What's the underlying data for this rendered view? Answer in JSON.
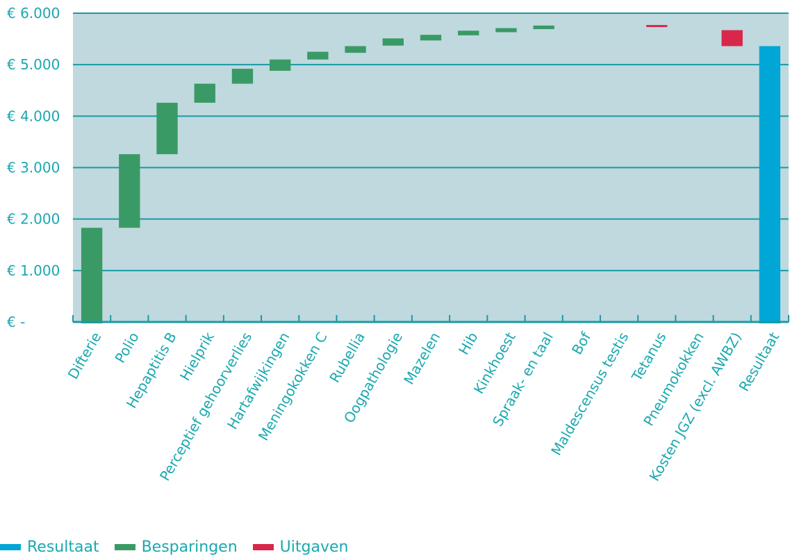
{
  "chart_data": {
    "type": "waterfall",
    "title": "",
    "xlabel": "",
    "ylabel": "",
    "ylim": [
      0,
      6000
    ],
    "y_ticks": [
      0,
      1000,
      2000,
      3000,
      4000,
      5000,
      6000
    ],
    "y_tick_labels": [
      "€ -",
      "€ 1.000",
      "€ 2.000",
      "€ 3.000",
      "€ 4.000",
      "€ 5.000",
      "€ 6.000"
    ],
    "grid": true,
    "legend_position": "bottom-left",
    "colors": {
      "Resultaat": "#00a6d6",
      "Besparingen": "#3a9a66",
      "Uitgaven": "#d9264a",
      "plot_background": "#bfd9de",
      "gridline": "#1a9aa6"
    },
    "legend": [
      {
        "name": "Resultaat",
        "color": "#00a6d6"
      },
      {
        "name": "Besparingen",
        "color": "#3a9a66"
      },
      {
        "name": "Uitgaven",
        "color": "#d9264a"
      }
    ],
    "categories": [
      "Difterie",
      "Polio",
      "Hepaptitis B",
      "Hielprik",
      "Perceptief gehoorverlies",
      "Hartafwijkingen",
      "Meningokokken C",
      "Rubellia",
      "Oogpathologie",
      "Mazelen",
      "Hib",
      "Kinkhoest",
      "Spraak- en taal",
      "Bof",
      "Maldescensus testis",
      "Tetanus",
      "Pneumokokken",
      "Kosten JGZ (excl. AWBZ)",
      "Resultaat"
    ],
    "bars": [
      {
        "category": "Difterie",
        "start": 0,
        "end": 1830,
        "kind": "Besparingen"
      },
      {
        "category": "Polio",
        "start": 1830,
        "end": 3260,
        "kind": "Besparingen"
      },
      {
        "category": "Hepaptitis B",
        "start": 3260,
        "end": 4260,
        "kind": "Besparingen"
      },
      {
        "category": "Hielprik",
        "start": 4260,
        "end": 4630,
        "kind": "Besparingen"
      },
      {
        "category": "Perceptief gehoorverlies",
        "start": 4630,
        "end": 4920,
        "kind": "Besparingen"
      },
      {
        "category": "Hartafwijkingen",
        "start": 4880,
        "end": 5100,
        "kind": "Besparingen"
      },
      {
        "category": "Meningokokken C",
        "start": 5100,
        "end": 5250,
        "kind": "Besparingen"
      },
      {
        "category": "Rubellia",
        "start": 5230,
        "end": 5360,
        "kind": "Besparingen"
      },
      {
        "category": "Oogpathologie",
        "start": 5370,
        "end": 5510,
        "kind": "Besparingen"
      },
      {
        "category": "Mazelen",
        "start": 5470,
        "end": 5580,
        "kind": "Besparingen"
      },
      {
        "category": "Hib",
        "start": 5570,
        "end": 5660,
        "kind": "Besparingen"
      },
      {
        "category": "Kinkhoest",
        "start": 5630,
        "end": 5710,
        "kind": "Besparingen"
      },
      {
        "category": "Spraak- en taal",
        "start": 5690,
        "end": 5760,
        "kind": "Besparingen"
      },
      {
        "category": "Bof",
        "start": 5760,
        "end": 5760,
        "kind": "Besparingen"
      },
      {
        "category": "Maldescensus testis",
        "start": 5760,
        "end": 5760,
        "kind": "Besparingen"
      },
      {
        "category": "Tetanus",
        "start": 5730,
        "end": 5770,
        "kind": "Uitgaven"
      },
      {
        "category": "Pneumokokken",
        "start": 5770,
        "end": 5770,
        "kind": "Uitgaven"
      },
      {
        "category": "Kosten JGZ (excl. AWBZ)",
        "start": 5360,
        "end": 5670,
        "kind": "Uitgaven"
      },
      {
        "category": "Resultaat",
        "start": 0,
        "end": 5360,
        "kind": "Resultaat"
      }
    ]
  }
}
